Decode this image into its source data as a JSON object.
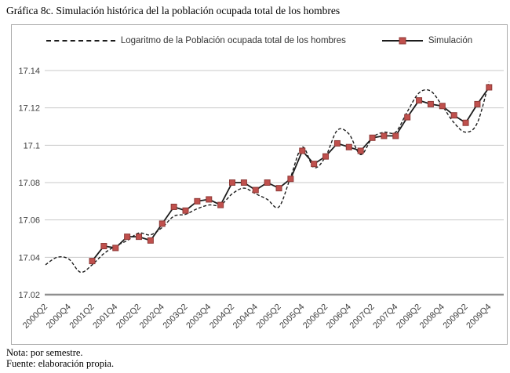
{
  "page": {
    "title": "Gráfica 8c. Simulación histórica del la población ocupada total de los hombres",
    "footnotes": [
      "Nota: por semestre.",
      "Fuente: elaboración propia."
    ]
  },
  "legend": {
    "position": "top-inside",
    "entries": [
      {
        "label": "Logaritmo de la Población ocupada total de los hombres",
        "style": "dashed-black-line"
      },
      {
        "label": "Simulación",
        "style": "solid-black-line-with-red-square-marker"
      }
    ]
  },
  "colors": {
    "line_black": "#1c1c1c",
    "marker_red": "#c0504d",
    "marker_red_border": "#8e3a37",
    "gridline": "#c9c9c9",
    "axis_line": "#8f8f8f",
    "frame_border": "#ababab",
    "tick_text": "#3f3f3f"
  },
  "chart_data": {
    "type": "line",
    "title": "Gráfica 8c. Simulación histórica del la población ocupada total de los hombres",
    "xlabel": "",
    "ylabel": "",
    "ylim": [
      17.02,
      17.14
    ],
    "y_ticks": [
      17.02,
      17.04,
      17.06,
      17.08,
      17.1,
      17.12,
      17.14
    ],
    "y_axis_tick_labels": [
      "17.02",
      "17.04",
      "17.06",
      "17.08",
      "17.1",
      "17.12",
      "17.14"
    ],
    "grid": "horizontal",
    "legend_position": "top-inside",
    "x_axis_tick_labels": [
      "2000Q2",
      "2000Q4",
      "2001Q2",
      "2001Q4",
      "2002Q2",
      "2002Q4",
      "2003Q2",
      "2003Q4",
      "2004Q2",
      "2004Q4",
      "2005Q2",
      "2005Q4",
      "2006Q2",
      "2006Q4",
      "2007Q2",
      "2007Q4",
      "2008Q2",
      "2008Q4",
      "2009Q2",
      "2009Q4"
    ],
    "x_quarters": [
      "2000Q2",
      "2000Q3",
      "2000Q4",
      "2001Q1",
      "2001Q2",
      "2001Q3",
      "2001Q4",
      "2002Q1",
      "2002Q2",
      "2002Q3",
      "2002Q4",
      "2003Q1",
      "2003Q2",
      "2003Q3",
      "2003Q4",
      "2004Q1",
      "2004Q2",
      "2004Q3",
      "2004Q4",
      "2005Q1",
      "2005Q2",
      "2005Q3",
      "2005Q4",
      "2006Q1",
      "2006Q2",
      "2006Q3",
      "2006Q4",
      "2007Q1",
      "2007Q2",
      "2007Q3",
      "2007Q4",
      "2008Q1",
      "2008Q2",
      "2008Q3",
      "2008Q4",
      "2009Q1",
      "2009Q2",
      "2009Q3",
      "2009Q4"
    ],
    "series": [
      {
        "name": "Logaritmo de la Población ocupada total de los hombres",
        "line": "dashed",
        "smoothed": true,
        "marker": "none",
        "values": [
          17.036,
          17.04,
          17.039,
          17.032,
          17.036,
          17.042,
          17.046,
          17.049,
          17.053,
          17.052,
          17.056,
          17.062,
          17.063,
          17.066,
          17.068,
          17.068,
          17.074,
          17.077,
          17.074,
          17.071,
          17.067,
          17.083,
          17.099,
          17.088,
          17.094,
          17.108,
          17.106,
          17.095,
          17.104,
          17.107,
          17.107,
          17.118,
          17.128,
          17.129,
          17.121,
          17.112,
          17.107,
          17.112,
          17.134
        ]
      },
      {
        "name": "Simulación",
        "line": "solid",
        "smoothed": false,
        "marker": "red-square",
        "values": [
          null,
          null,
          null,
          null,
          17.038,
          17.046,
          17.045,
          17.051,
          17.051,
          17.049,
          17.058,
          17.067,
          17.065,
          17.07,
          17.071,
          17.068,
          17.08,
          17.08,
          17.076,
          17.08,
          17.077,
          17.082,
          17.097,
          17.09,
          17.094,
          17.101,
          17.099,
          17.097,
          17.104,
          17.105,
          17.105,
          17.115,
          17.124,
          17.122,
          17.121,
          17.116,
          17.112,
          17.122,
          17.131
        ]
      }
    ]
  }
}
